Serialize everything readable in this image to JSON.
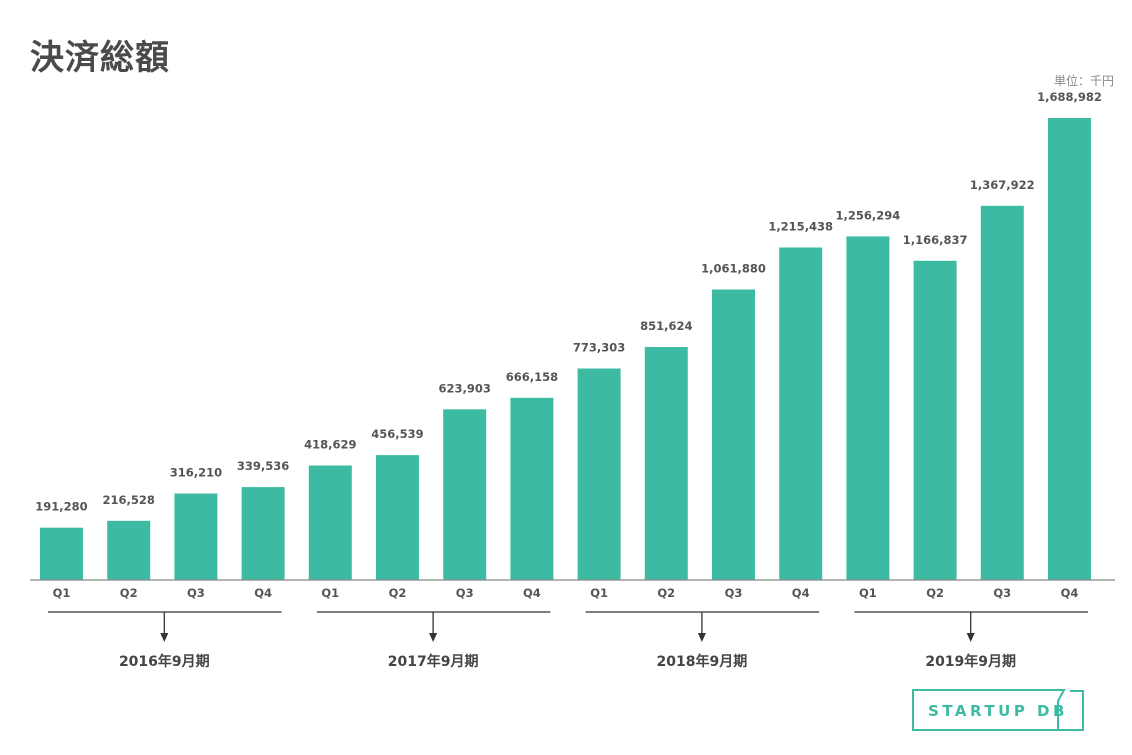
{
  "title": "決済総額",
  "unit_label": "単位：千円",
  "logo_text": "STARTUP DB",
  "colors": {
    "bar": "#3dbba2",
    "axis": "#888888",
    "text": "#555555"
  },
  "chart_data": {
    "type": "bar",
    "categories": [
      "Q1",
      "Q2",
      "Q3",
      "Q4",
      "Q1",
      "Q2",
      "Q3",
      "Q4",
      "Q1",
      "Q2",
      "Q3",
      "Q4",
      "Q1",
      "Q2",
      "Q3",
      "Q4"
    ],
    "values": [
      191280,
      216528,
      316210,
      339536,
      418629,
      456539,
      623903,
      666158,
      773303,
      851624,
      1061880,
      1215438,
      1256294,
      1166837,
      1367922,
      1688982
    ],
    "value_labels": [
      "191,280",
      "216,528",
      "316,210",
      "339,536",
      "418,629",
      "456,539",
      "623,903",
      "666,158",
      "773,303",
      "851,624",
      "1,061,880",
      "1,215,438",
      "1,256,294",
      "1,166,837",
      "1,367,922",
      "1,688,982"
    ],
    "periods": [
      "2016年9月期",
      "2017年9月期",
      "2018年9月期",
      "2019年9月期"
    ],
    "ylim": [
      0,
      1688982
    ],
    "grid": false
  }
}
